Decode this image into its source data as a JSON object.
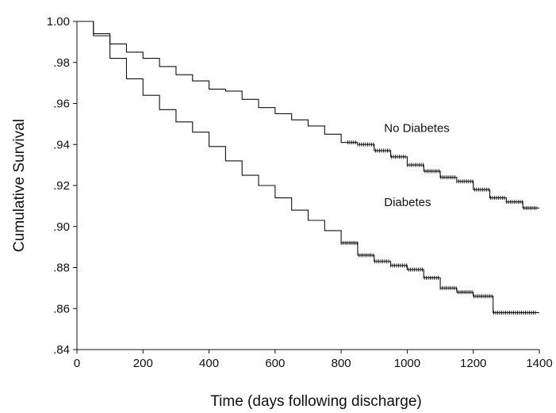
{
  "chart_data": {
    "type": "line",
    "title": "",
    "xlabel": "Time (days following discharge)",
    "ylabel": "Cumulative Survival",
    "xlim": [
      0,
      1400
    ],
    "ylim": [
      0.84,
      1.0
    ],
    "xticks": [
      0,
      200,
      400,
      600,
      800,
      1000,
      1200,
      1400
    ],
    "xtick_labels": [
      "0",
      "200",
      "400",
      "600",
      "800",
      "1000",
      "1200",
      "1400"
    ],
    "yticks": [
      0.84,
      0.86,
      0.88,
      0.9,
      0.92,
      0.94,
      0.96,
      0.98,
      1.0
    ],
    "ytick_labels": [
      ".84",
      ".86",
      ".88",
      ".90",
      ".92",
      ".94",
      ".96",
      ".98",
      "1.00"
    ],
    "grid": false,
    "legend": "none",
    "series": [
      {
        "name": "No Diabetes",
        "color": "#111111",
        "x": [
          0,
          50,
          100,
          150,
          200,
          250,
          300,
          350,
          400,
          450,
          500,
          550,
          600,
          650,
          700,
          750,
          800,
          850,
          900,
          950,
          1000,
          1050,
          1100,
          1150,
          1200,
          1250,
          1300,
          1350,
          1400
        ],
        "y": [
          1.0,
          0.994,
          0.989,
          0.985,
          0.982,
          0.978,
          0.974,
          0.971,
          0.967,
          0.966,
          0.962,
          0.958,
          0.955,
          0.952,
          0.949,
          0.945,
          0.941,
          0.94,
          0.937,
          0.934,
          0.93,
          0.927,
          0.924,
          0.922,
          0.918,
          0.914,
          0.912,
          0.909,
          0.909
        ]
      },
      {
        "name": "Diabetes",
        "color": "#111111",
        "x": [
          0,
          50,
          100,
          150,
          200,
          250,
          300,
          350,
          400,
          450,
          500,
          550,
          600,
          650,
          700,
          750,
          800,
          850,
          900,
          950,
          1000,
          1050,
          1100,
          1150,
          1200,
          1250,
          1260,
          1300,
          1350,
          1400
        ],
        "y": [
          1.0,
          0.993,
          0.982,
          0.972,
          0.964,
          0.957,
          0.951,
          0.946,
          0.939,
          0.932,
          0.925,
          0.92,
          0.914,
          0.908,
          0.903,
          0.898,
          0.892,
          0.886,
          0.883,
          0.881,
          0.879,
          0.875,
          0.87,
          0.868,
          0.866,
          0.866,
          0.858,
          0.858,
          0.858,
          0.858
        ]
      }
    ],
    "annotations": [
      {
        "text": "No Diabetes",
        "x": 930,
        "y": 0.946
      },
      {
        "text": "Diabetes",
        "x": 930,
        "y": 0.91
      }
    ]
  }
}
